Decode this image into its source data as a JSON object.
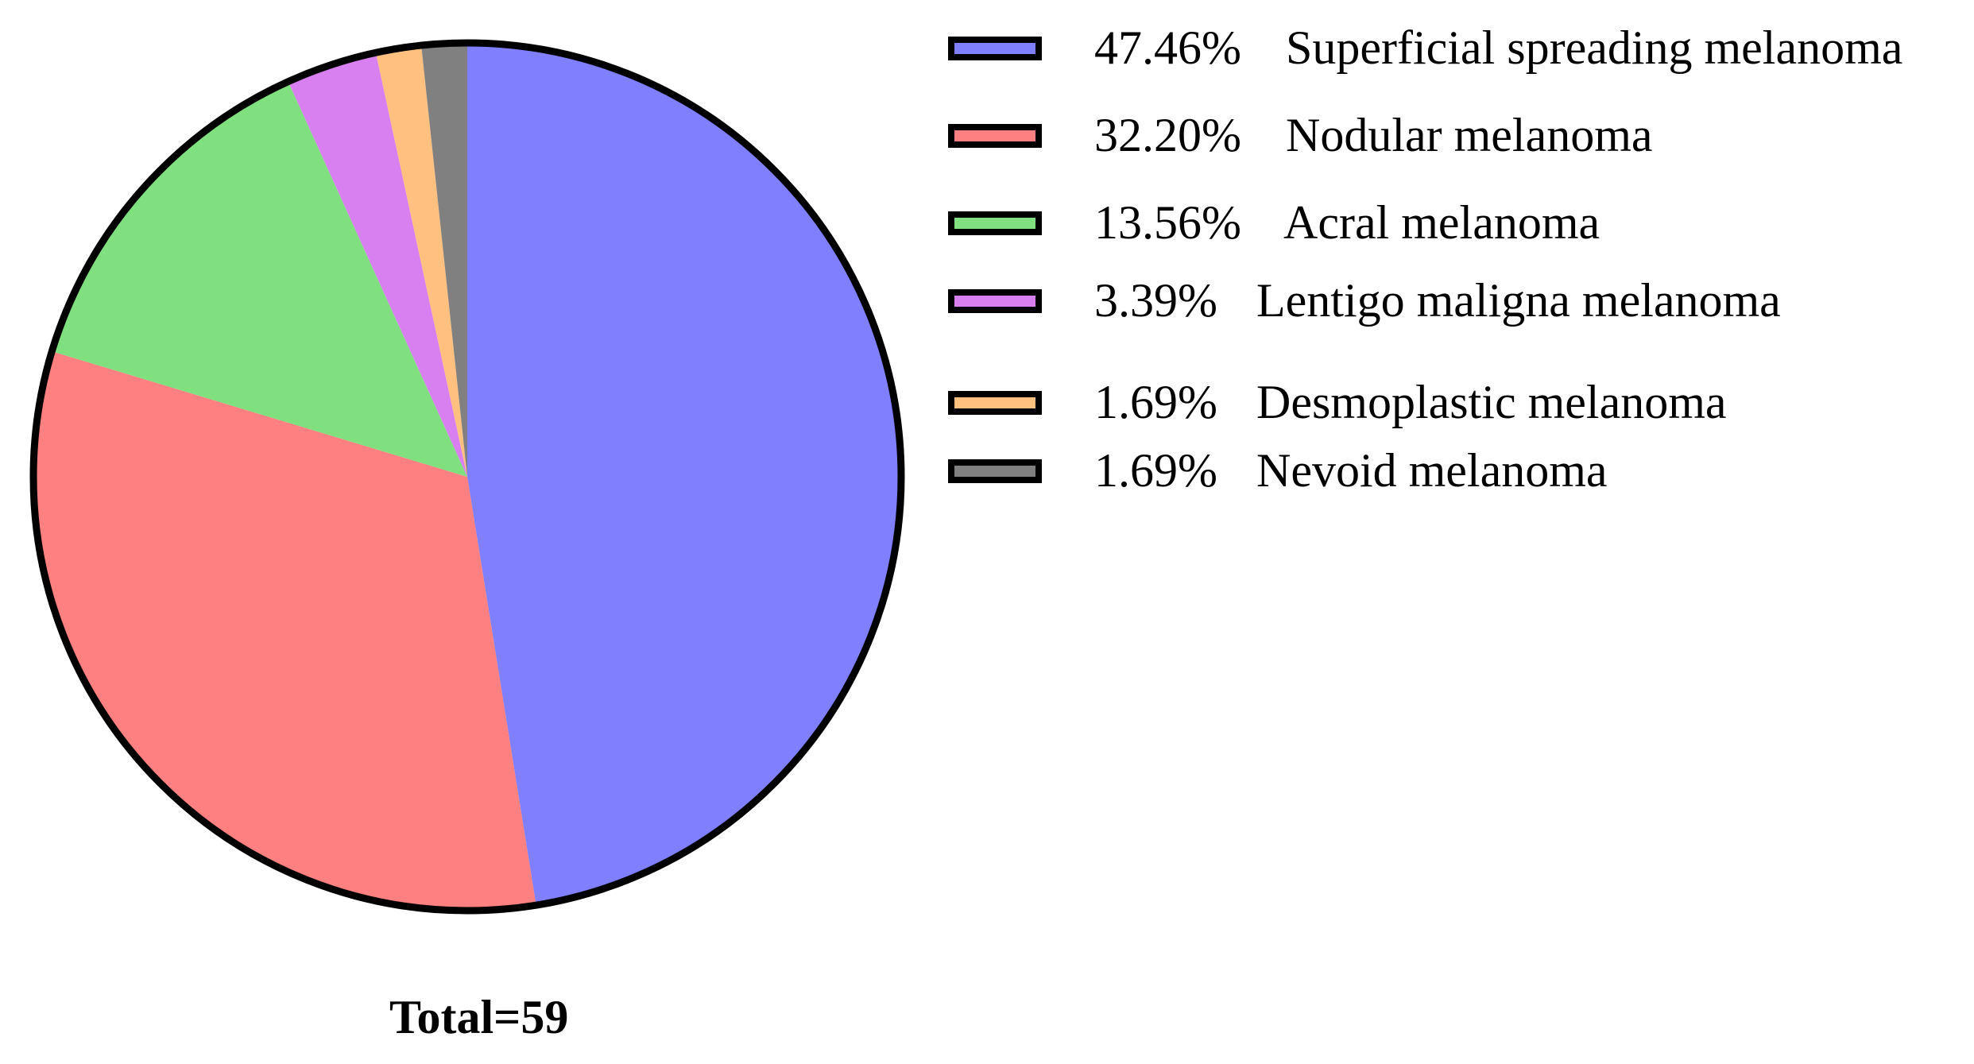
{
  "chart_data": {
    "type": "pie",
    "start_angle_note": "",
    "slices": [
      {
        "label": "Superficial spreading melanoma",
        "percent": 47.46,
        "percent_label": "47.46%",
        "color": "#8080FF"
      },
      {
        "label": "Nodular melanoma",
        "percent": 32.2,
        "percent_label": "32.20%",
        "color": "#FF8080"
      },
      {
        "label": "Acral melanoma",
        "percent": 13.56,
        "percent_label": "13.56%",
        "color": "#80E080"
      },
      {
        "label": "Lentigo maligna melanoma",
        "percent": 3.39,
        "percent_label": "3.39%",
        "color": "#D880F0"
      },
      {
        "label": "Desmoplastic melanoma",
        "percent": 1.69,
        "percent_label": "1.69%",
        "color": "#FFC080"
      },
      {
        "label": "Nevoid melanoma",
        "percent": 1.69,
        "percent_label": "1.69%",
        "color": "#808080"
      }
    ],
    "direction": "clockwise",
    "start": "top",
    "legend_position": "right",
    "outline_color": "#000000",
    "footer": "Total=59"
  }
}
